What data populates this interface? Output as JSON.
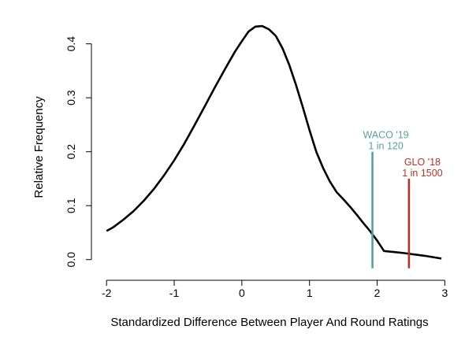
{
  "chart_data": {
    "type": "line",
    "title": "",
    "xlabel": "Standardized Difference Between Player And Round Ratings",
    "ylabel": "Relative Frequency",
    "xlim": [
      -2.2,
      3.1
    ],
    "ylim": [
      -0.015,
      0.455
    ],
    "x_ticks": [
      -2,
      -1,
      0,
      1,
      2,
      3
    ],
    "x_tick_labels": [
      "-2",
      "-1",
      "0",
      "1",
      "2",
      "3"
    ],
    "y_ticks": [
      0.0,
      0.1,
      0.2,
      0.3,
      0.4
    ],
    "y_tick_labels": [
      "0.0",
      "0.1",
      "0.2",
      "0.3",
      "0.4"
    ],
    "grid": false,
    "series": [
      {
        "x": [
          -2.0,
          -1.9,
          -1.75,
          -1.6,
          -1.45,
          -1.3,
          -1.15,
          -1.0,
          -0.85,
          -0.7,
          -0.55,
          -0.4,
          -0.25,
          -0.1,
          0.0,
          0.1,
          0.2,
          0.3,
          0.4,
          0.5,
          0.6,
          0.7,
          0.8,
          0.9,
          1.0,
          1.1,
          1.2,
          1.3,
          1.4,
          1.5,
          1.6,
          1.7,
          1.8,
          1.9,
          2.0,
          2.1,
          2.4,
          2.7,
          2.95
        ],
        "y": [
          0.053,
          0.06,
          0.074,
          0.09,
          0.109,
          0.131,
          0.156,
          0.184,
          0.215,
          0.249,
          0.284,
          0.319,
          0.353,
          0.386,
          0.405,
          0.423,
          0.432,
          0.433,
          0.427,
          0.415,
          0.392,
          0.361,
          0.324,
          0.283,
          0.24,
          0.2,
          0.17,
          0.145,
          0.125,
          0.112,
          0.098,
          0.083,
          0.067,
          0.052,
          0.035,
          0.016,
          0.012,
          0.007,
          0.002
        ],
        "color": "#000000"
      }
    ],
    "markers": [
      {
        "x": 1.93,
        "ymax": 0.2,
        "color": "#5a9ea3",
        "label_line1": "WACO '19",
        "label_line2": "1 in 120"
      },
      {
        "x": 2.47,
        "ymax": 0.15,
        "color": "#b0342b",
        "label_line1": "GLO '18",
        "label_line2": "1 in 1500"
      }
    ]
  }
}
